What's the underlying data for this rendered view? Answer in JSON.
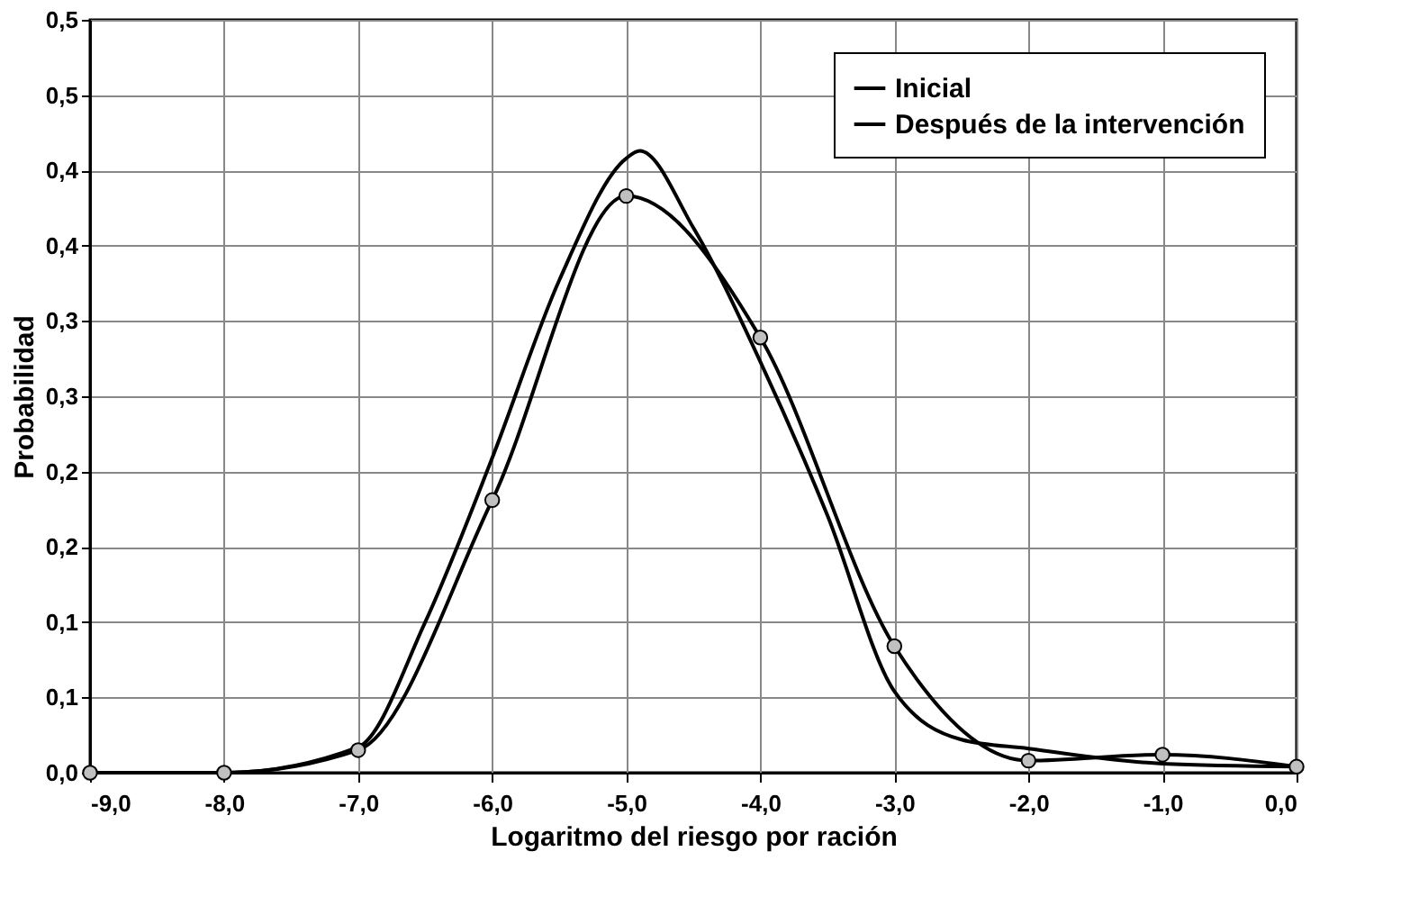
{
  "chart_data": {
    "type": "line",
    "xlabel": "Logaritmo del riesgo por ración",
    "ylabel": "Probabilidad",
    "xlim": [
      -9,
      0
    ],
    "ylim": [
      0,
      0.5
    ],
    "xticks": [
      {
        "value": -9,
        "label": "-9,0"
      },
      {
        "value": -8,
        "label": "-8,0"
      },
      {
        "value": -7,
        "label": "-7,0"
      },
      {
        "value": -6,
        "label": "-6,0"
      },
      {
        "value": -5,
        "label": "-5,0"
      },
      {
        "value": -4,
        "label": "-4,0"
      },
      {
        "value": -3,
        "label": "-3,0"
      },
      {
        "value": -2,
        "label": "-2,0"
      },
      {
        "value": -1,
        "label": "-1,0"
      },
      {
        "value": 0,
        "label": "0,0"
      }
    ],
    "yticks": [
      {
        "value": 0,
        "label": "0,0"
      },
      {
        "value": 0.05,
        "label": "0,1"
      },
      {
        "value": 0.1,
        "label": "0,1"
      },
      {
        "value": 0.15,
        "label": "0,2"
      },
      {
        "value": 0.2,
        "label": "0,2"
      },
      {
        "value": 0.25,
        "label": "0,3"
      },
      {
        "value": 0.3,
        "label": "0,3"
      },
      {
        "value": 0.35,
        "label": "0,4"
      },
      {
        "value": 0.4,
        "label": "0,4"
      },
      {
        "value": 0.45,
        "label": "0,5"
      },
      {
        "value": 0.5,
        "label": "0,5"
      }
    ],
    "grid": true,
    "legend": "top right",
    "series": [
      {
        "name": "Inicial",
        "color": "#000000",
        "marker": "circle",
        "x": [
          -9,
          -8,
          -7,
          -6,
          -5,
          -4,
          -3,
          -2,
          -1,
          0
        ],
        "values": [
          0,
          0,
          0.015,
          0.181,
          0.383,
          0.289,
          0.084,
          0.008,
          0.012,
          0.004
        ]
      },
      {
        "name": "Después de la intervención",
        "color": "#000000",
        "marker": "none",
        "x": [
          -9,
          -8,
          -7,
          -6.5,
          -6,
          -5.5,
          -5,
          -4.9,
          -4.5,
          -4,
          -3.5,
          -3,
          -2.5,
          -2,
          -1,
          0
        ],
        "values": [
          0,
          0,
          0.017,
          0.1,
          0.209,
          0.327,
          0.408,
          0.413,
          0.362,
          0.273,
          0.171,
          0.054,
          0.022,
          0.016,
          0.006,
          0.004
        ]
      }
    ]
  }
}
